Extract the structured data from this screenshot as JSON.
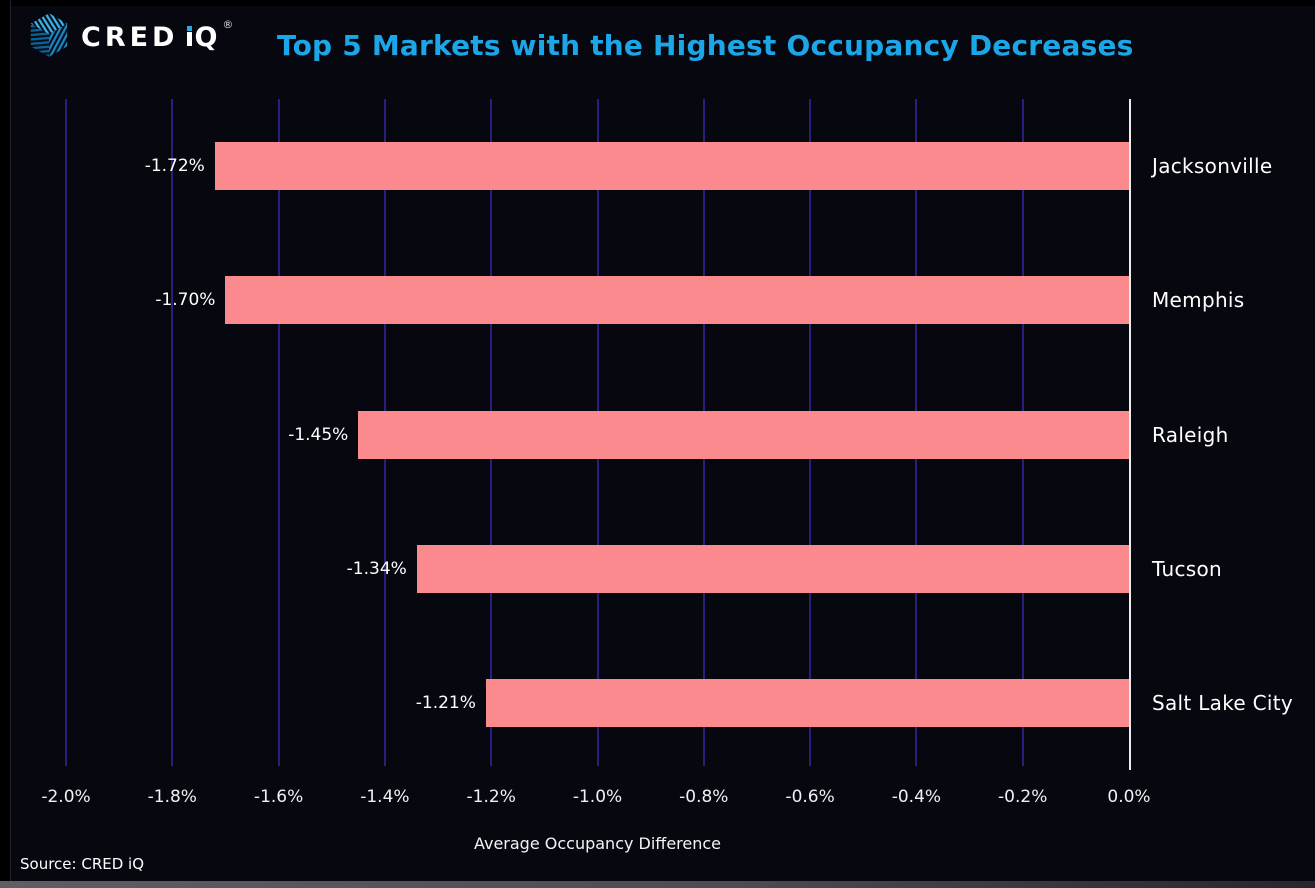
{
  "header": {
    "logo": {
      "brand_pre": "CRED",
      "brand_i": "i",
      "brand_q": "Q",
      "reg": "®"
    }
  },
  "chart_data": {
    "type": "bar",
    "orientation": "horizontal",
    "title": "Top 5 Markets with the Highest Occupancy Decreases",
    "categories": [
      "Jacksonville",
      "Memphis",
      "Raleigh",
      "Tucson",
      "Salt Lake City"
    ],
    "values": [
      -1.72,
      -1.7,
      -1.45,
      -1.34,
      -1.21
    ],
    "value_labels": [
      "-1.72%",
      "-1.70%",
      "-1.45%",
      "-1.34%",
      "-1.21%"
    ],
    "xlabel": "Average Occupancy Difference",
    "ylabel": "",
    "xlim": [
      -2.0,
      0.0
    ],
    "x_ticks": [
      -2.0,
      -1.8,
      -1.6,
      -1.4,
      -1.2,
      -1.0,
      -0.8,
      -0.6,
      -0.4,
      -0.2,
      0.0
    ],
    "x_tick_labels": [
      "-2.0%",
      "-1.8%",
      "-1.6%",
      "-1.4%",
      "-1.2%",
      "-1.0%",
      "-0.8%",
      "-0.6%",
      "-0.4%",
      "-0.2%",
      "0.0%"
    ],
    "grid": "vertical",
    "legend": "none",
    "category_axis_side": "right",
    "bar_color": "#fa8a8e",
    "gridline_color": "#2b1e7e",
    "axis_line_color": "#ececec",
    "background_color": "#07070f",
    "title_color": "#1ca6e8",
    "label_color": "#ffffff"
  },
  "footer": {
    "source": "Source: CRED iQ"
  }
}
